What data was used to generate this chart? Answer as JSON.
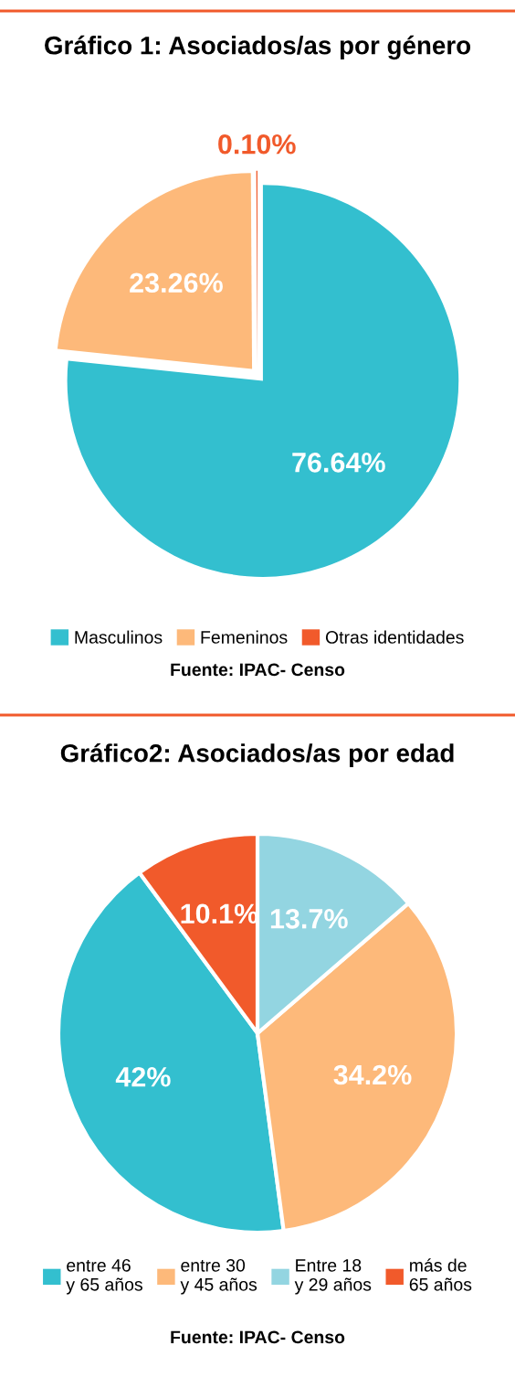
{
  "chart_data": [
    {
      "type": "pie",
      "title": "Gráfico 1: Asociados/as por género",
      "categories": [
        "Masculinos",
        "Femeninos",
        "Otras identidades"
      ],
      "values": [
        76.64,
        23.26,
        0.1
      ],
      "colors": [
        "#33bfcf",
        "#fdb97a",
        "#f15a2b"
      ],
      "value_labels": [
        "76.64%",
        "23.26%",
        "0.10%"
      ],
      "legend": "bottom",
      "annotations": [
        "Fuente: IPAC- Censo"
      ]
    },
    {
      "type": "pie",
      "title": "Gráfico2: Asociados/as por edad",
      "categories": [
        "entre 46\ny 65 años",
        "entre 30\ny 45 años",
        "Entre 18\ny 29 años",
        "más de\n65 años"
      ],
      "values": [
        42,
        34.2,
        13.7,
        10.1
      ],
      "colors": [
        "#33bfcf",
        "#fdb97a",
        "#93d5e1",
        "#f15a2b"
      ],
      "value_labels": [
        "42%",
        "34.2%",
        "13.7%",
        "10.1%"
      ],
      "legend": "bottom",
      "annotations": [
        "Fuente: IPAC- Censo"
      ]
    }
  ]
}
